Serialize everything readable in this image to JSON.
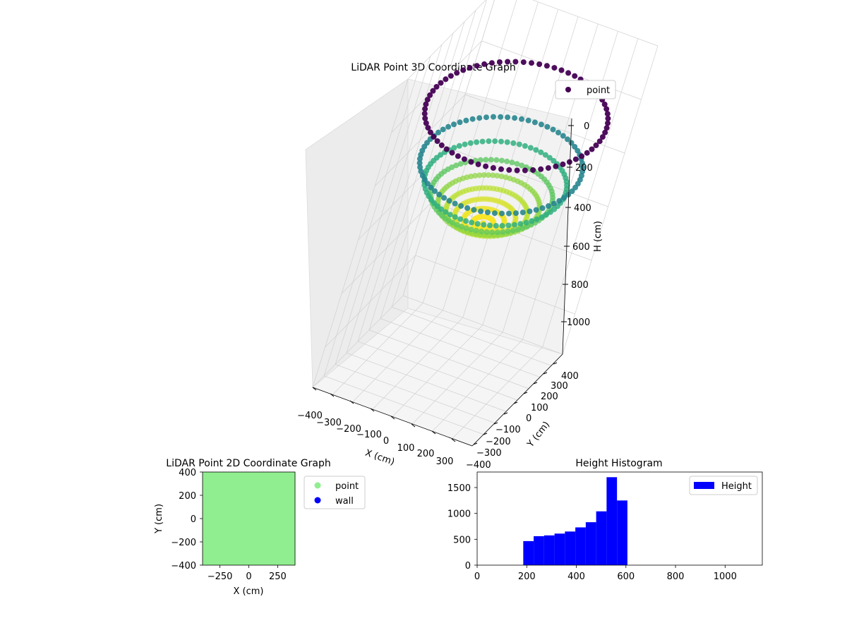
{
  "figure": {
    "background": "#ffffff"
  },
  "chart_data": [
    {
      "type": "scatter",
      "projection": "3d",
      "title": "LiDAR Point 3D Coordinate Graph",
      "xlabel": "X (cm)",
      "ylabel": "Y (cm)",
      "zlabel": "H (cm)",
      "xlim": [
        -400,
        400
      ],
      "ylim": [
        -400,
        400
      ],
      "zlim": [
        0,
        1150
      ],
      "z_inverted": true,
      "xticks": [
        "−400",
        "−300",
        "−200",
        "−100",
        "0",
        "100",
        "200",
        "300"
      ],
      "yticks": [
        "−400",
        "−300",
        "−200",
        "−100",
        "0",
        "100",
        "200",
        "300",
        "400"
      ],
      "zticks": [
        "0",
        "200",
        "400",
        "600",
        "800",
        "1000"
      ],
      "legend": {
        "label": "point",
        "placement": "upper-right",
        "color": "#440154"
      },
      "colormap": "viridis",
      "shape": "hemispherical bowl",
      "rim_height": 200,
      "bottom_height": 600,
      "radius": 400,
      "grid": true
    },
    {
      "type": "scatter",
      "title": "LiDAR Point 2D Coordinate Graph",
      "xlabel": "X (cm)",
      "ylabel": "Y (cm)",
      "xlim": [
        -400,
        400
      ],
      "ylim": [
        -400,
        400
      ],
      "xticks": [
        "−250",
        "0",
        "250"
      ],
      "xtick_values": [
        -250,
        0,
        250
      ],
      "yticks": [
        "400",
        "200",
        "0",
        "−200",
        "−400"
      ],
      "ytick_values": [
        400,
        200,
        0,
        -200,
        -400
      ],
      "fill_color": "#90ee90",
      "legend": {
        "placement": "outside-right",
        "entries": [
          {
            "label": "point",
            "color": "#90ee90"
          },
          {
            "label": "wall",
            "color": "#0000ff"
          }
        ]
      }
    },
    {
      "type": "bar",
      "title": "Height Histogram",
      "xlim": [
        0,
        1150
      ],
      "ylim": [
        0,
        1800
      ],
      "xticks": [
        "0",
        "200",
        "400",
        "600",
        "800",
        "1000"
      ],
      "xtick_values": [
        0,
        200,
        400,
        600,
        800,
        1000
      ],
      "yticks": [
        "0",
        "500",
        "1000",
        "1500"
      ],
      "ytick_values": [
        0,
        500,
        1000,
        1500
      ],
      "bar_color": "#0000ff",
      "legend": {
        "label": "Height",
        "placement": "upper-right"
      },
      "bins": [
        {
          "x0": 186,
          "x1": 228,
          "value": 465
        },
        {
          "x0": 228,
          "x1": 270,
          "value": 560
        },
        {
          "x0": 270,
          "x1": 312,
          "value": 575
        },
        {
          "x0": 312,
          "x1": 354,
          "value": 610
        },
        {
          "x0": 354,
          "x1": 396,
          "value": 650
        },
        {
          "x0": 396,
          "x1": 438,
          "value": 730
        },
        {
          "x0": 438,
          "x1": 480,
          "value": 830
        },
        {
          "x0": 480,
          "x1": 522,
          "value": 1040
        },
        {
          "x0": 522,
          "x1": 564,
          "value": 1700
        },
        {
          "x0": 564,
          "x1": 606,
          "value": 1250
        }
      ]
    }
  ]
}
